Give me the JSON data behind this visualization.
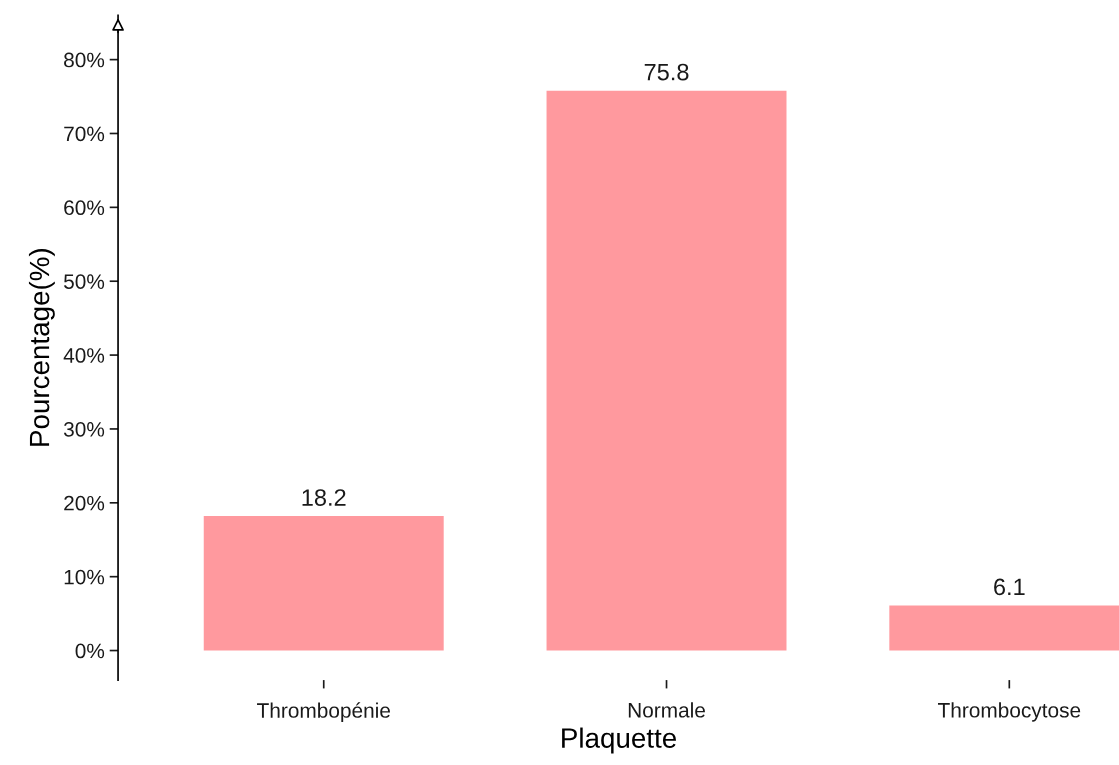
{
  "chart_data": {
    "type": "bar",
    "xlabel": "Plaquette",
    "ylabel": "Pourcentage(%)",
    "categories": [
      "Thrombopénie",
      "Normale",
      "Thrombocytose"
    ],
    "values": [
      18.2,
      75.8,
      6.1
    ],
    "color": "#ff999e",
    "data_labels": true,
    "ylim": [
      -4,
      86
    ],
    "yticks": [
      {
        "value": 0,
        "label": "0%"
      },
      {
        "value": 10,
        "label": "10%"
      },
      {
        "value": 20,
        "label": "20%"
      },
      {
        "value": 30,
        "label": "30%"
      },
      {
        "value": 40,
        "label": "40%"
      },
      {
        "value": 50,
        "label": "50%"
      },
      {
        "value": 60,
        "label": "60%"
      },
      {
        "value": 70,
        "label": "70%"
      },
      {
        "value": 80,
        "label": "80%"
      }
    ],
    "grid": false,
    "legend": false
  }
}
